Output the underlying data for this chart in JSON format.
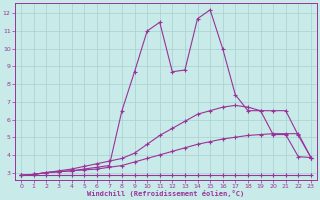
{
  "bg_color": "#c8eae8",
  "grid_color": "#a8d0d0",
  "line_color": "#993399",
  "xlabel": "Windchill (Refroidissement éolien,°C)",
  "xlim": [
    -0.5,
    23.5
  ],
  "ylim": [
    2.6,
    12.6
  ],
  "xticks": [
    0,
    1,
    2,
    3,
    4,
    5,
    6,
    7,
    8,
    9,
    10,
    11,
    12,
    13,
    14,
    15,
    16,
    17,
    18,
    19,
    20,
    21,
    22,
    23
  ],
  "yticks": [
    3,
    4,
    5,
    6,
    7,
    8,
    9,
    10,
    11,
    12
  ],
  "line1_x": [
    0,
    1,
    2,
    3,
    4,
    5,
    6,
    7,
    8,
    9,
    10,
    11,
    12,
    13,
    14,
    15,
    16,
    17,
    18,
    19,
    20,
    21,
    22,
    23
  ],
  "line1_y": [
    2.85,
    2.85,
    2.85,
    2.85,
    2.85,
    2.85,
    2.85,
    2.85,
    2.85,
    2.85,
    2.85,
    2.85,
    2.85,
    2.85,
    2.85,
    2.85,
    2.85,
    2.85,
    2.85,
    2.85,
    2.85,
    2.85,
    2.85,
    2.85
  ],
  "line2_x": [
    0,
    1,
    2,
    3,
    4,
    5,
    6,
    7,
    8,
    9,
    10,
    11,
    12,
    13,
    14,
    15,
    16,
    17,
    18,
    19,
    20,
    21,
    22,
    23
  ],
  "line2_y": [
    2.85,
    2.9,
    3.0,
    3.05,
    3.1,
    3.15,
    3.2,
    3.3,
    3.4,
    3.6,
    3.8,
    4.0,
    4.2,
    4.4,
    4.6,
    4.75,
    4.9,
    5.0,
    5.1,
    5.15,
    5.2,
    5.2,
    5.2,
    3.85
  ],
  "line3_x": [
    0,
    1,
    2,
    3,
    4,
    5,
    6,
    7,
    8,
    9,
    10,
    11,
    12,
    13,
    14,
    15,
    16,
    17,
    18,
    19,
    20,
    21,
    22,
    23
  ],
  "line3_y": [
    2.85,
    2.9,
    3.0,
    3.1,
    3.2,
    3.35,
    3.5,
    3.65,
    3.8,
    4.1,
    4.6,
    5.1,
    5.5,
    5.9,
    6.3,
    6.5,
    6.7,
    6.8,
    6.7,
    6.5,
    6.5,
    6.5,
    5.1,
    3.85
  ],
  "line4_x": [
    0,
    1,
    2,
    3,
    4,
    5,
    6,
    7,
    8,
    9,
    10,
    11,
    12,
    13,
    14,
    15,
    16,
    17,
    18,
    19,
    20,
    21,
    22,
    23
  ],
  "line4_y": [
    2.85,
    2.9,
    3.0,
    3.05,
    3.1,
    3.2,
    3.3,
    3.4,
    6.5,
    8.7,
    11.0,
    11.5,
    8.7,
    8.8,
    11.7,
    12.2,
    10.0,
    7.4,
    6.5,
    6.5,
    5.15,
    5.15,
    3.9,
    3.85
  ]
}
